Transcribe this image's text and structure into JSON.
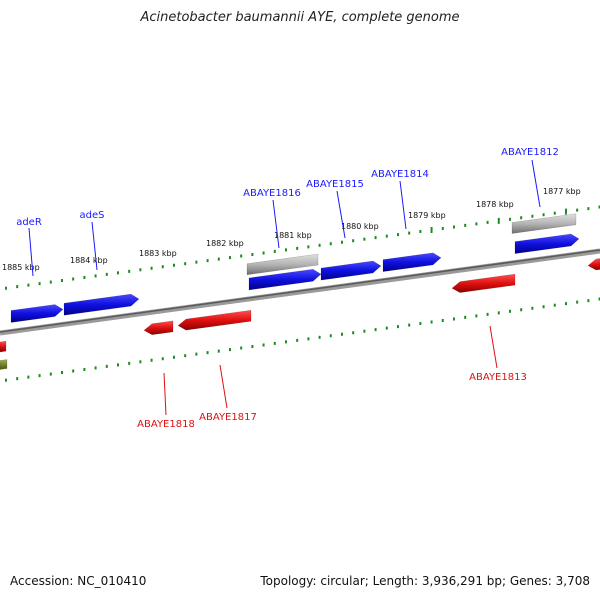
{
  "title": "Acinetobacter baumannii AYE, complete genome",
  "footer": {
    "accession": "Accession: NC_010410",
    "summary": "Topology: circular; Length: 3,936,291 bp; Genes: 3,708"
  },
  "colors": {
    "forward_gene": "#1414e0",
    "reverse_gene": "#e01414",
    "other_gene": "#b4b4b4",
    "scale_ticks": "#1f8a1f",
    "backbone": "#7a7a7a",
    "label_forward": "#1a1aff",
    "label_reverse": "#dd1111"
  },
  "scale_labels": [
    "1885 kbp",
    "1884 kbp",
    "1883 kbp",
    "1882 kbp",
    "1881 kbp",
    "1880 kbp",
    "1879 kbp",
    "1878 kbp",
    "1877 kbp"
  ],
  "forward_labels": [
    "adeR",
    "adeS",
    "ABAYE1816",
    "ABAYE1815",
    "ABAYE1814",
    "ABAYE1812"
  ],
  "reverse_labels": [
    "ABAYE1818",
    "ABAYE1817",
    "ABAYE1813"
  ]
}
